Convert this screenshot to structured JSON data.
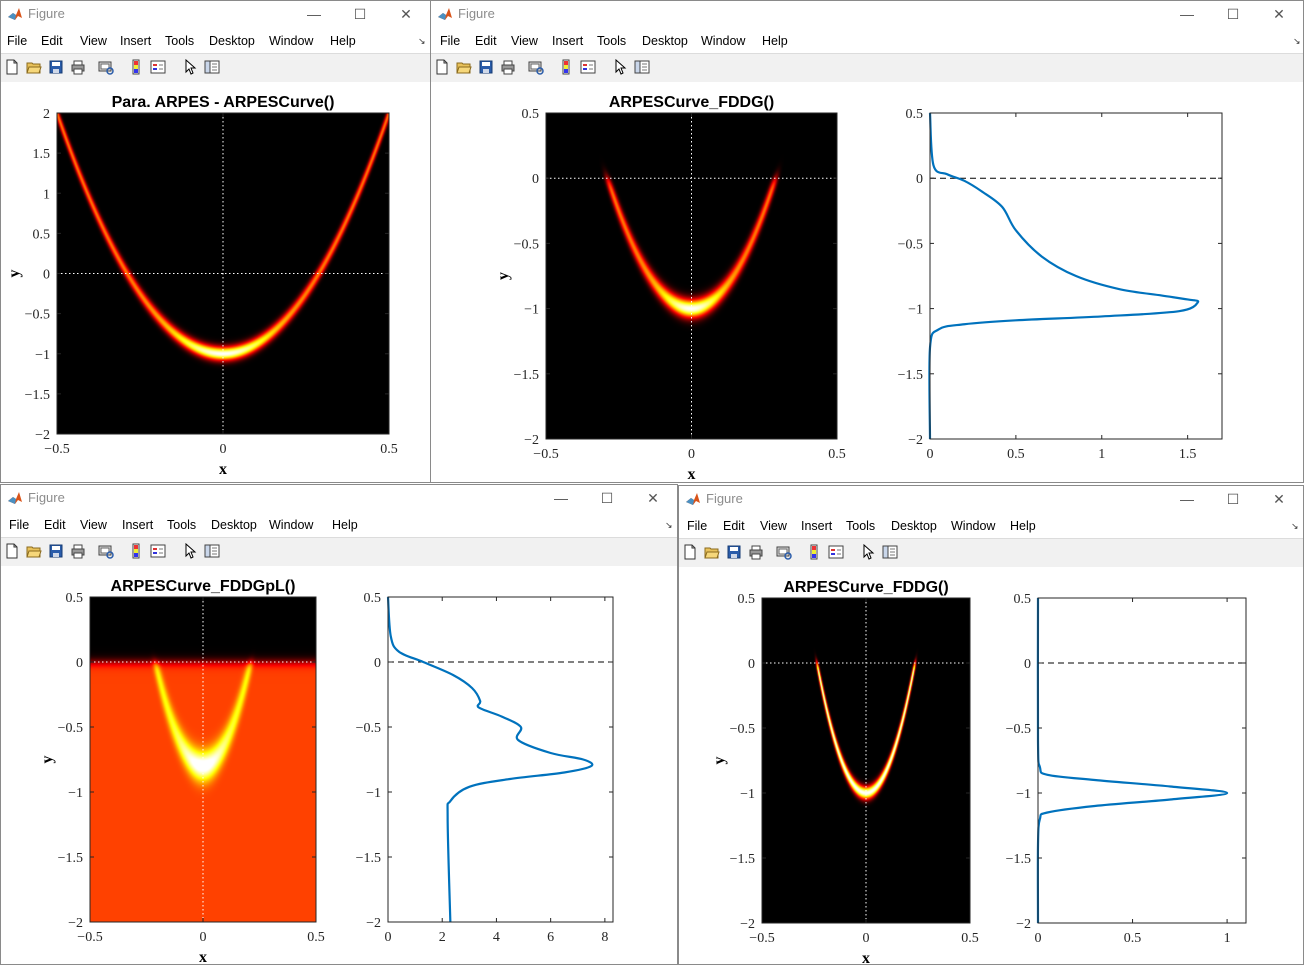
{
  "colors": {
    "curve": "#0072bd",
    "window_border": "#8a8a8a",
    "toolbar_bg": "#f1f1f1"
  },
  "icons": {
    "toolbar": [
      "new-figure-icon",
      "open-file-icon",
      "save-icon",
      "print-icon",
      "print-preview-icon",
      "insert-colorbar-icon",
      "insert-legend-icon",
      "select-arrow-icon",
      "property-editor-icon"
    ],
    "window_controls": [
      "minimize-icon",
      "maximize-icon",
      "close-icon"
    ],
    "app": "matlab-logo-icon"
  },
  "windows": [
    {
      "title": "Figure",
      "menu": [
        "File",
        "Edit",
        "View",
        "Insert",
        "Tools",
        "Desktop",
        "Window",
        "Help"
      ],
      "axes": [
        {
          "title": "Para. ARPES - ARPESCurve()",
          "xlabel": "x",
          "ylabel": "y",
          "xticks": [
            "-0.5",
            "0",
            "0.5"
          ],
          "yticks": [
            "2",
            "1.5",
            "1",
            "0.5",
            "0",
            "-0.5",
            "-1",
            "-1.5",
            "-2"
          ]
        }
      ]
    },
    {
      "title": "Figure",
      "menu": [
        "File",
        "Edit",
        "View",
        "Insert",
        "Tools",
        "Desktop",
        "Window",
        "Help"
      ],
      "axes": [
        {
          "title": "ARPESCurve_FDDG()",
          "xlabel": "x",
          "ylabel": "y",
          "xticks": [
            "-0.5",
            "0",
            "0.5"
          ],
          "yticks": [
            "0.5",
            "0",
            "-0.5",
            "-1",
            "-1.5",
            "-2"
          ]
        },
        {
          "title": "",
          "xlabel": "",
          "ylabel": "",
          "xticks": [
            "0",
            "0.5",
            "1",
            "1.5"
          ],
          "yticks": [
            "0.5",
            "0",
            "-0.5",
            "-1",
            "-1.5",
            "-2"
          ]
        }
      ]
    },
    {
      "title": "Figure",
      "menu": [
        "File",
        "Edit",
        "View",
        "Insert",
        "Tools",
        "Desktop",
        "Window",
        "Help"
      ],
      "axes": [
        {
          "title": "ARPESCurve_FDDGpL()",
          "xlabel": "x",
          "ylabel": "y",
          "xticks": [
            "-0.5",
            "0",
            "0.5"
          ],
          "yticks": [
            "0.5",
            "0",
            "-0.5",
            "-1",
            "-1.5",
            "-2"
          ]
        },
        {
          "title": "",
          "xlabel": "",
          "ylabel": "",
          "xticks": [
            "0",
            "2",
            "4",
            "6",
            "8"
          ],
          "yticks": [
            "0.5",
            "0",
            "-0.5",
            "-1",
            "-1.5",
            "-2"
          ]
        }
      ]
    },
    {
      "title": "Figure",
      "menu": [
        "File",
        "Edit",
        "View",
        "Insert",
        "Tools",
        "Desktop",
        "Window",
        "Help"
      ],
      "axes": [
        {
          "title": "ARPESCurve_FDDG()",
          "xlabel": "x",
          "ylabel": "y",
          "xticks": [
            "-0.5",
            "0",
            "0.5"
          ],
          "yticks": [
            "0.5",
            "0",
            "-0.5",
            "-1",
            "-1.5",
            "-2"
          ]
        },
        {
          "title": "",
          "xlabel": "",
          "ylabel": "",
          "xticks": [
            "0",
            "0.5",
            "1"
          ],
          "yticks": [
            "0.5",
            "0",
            "-0.5",
            "-1",
            "-1.5",
            "-2"
          ]
        }
      ]
    }
  ],
  "chart_data": [
    {
      "type": "heatmap",
      "title": "Para. ARPES - ARPESCurve()",
      "xlabel": "x",
      "ylabel": "y",
      "xlim": [
        -0.5,
        0.5
      ],
      "ylim": [
        -2,
        2
      ],
      "colormap": "hot",
      "band": "y = -1 + 12x^2",
      "reference_lines": {
        "x": 0,
        "y": 0,
        "style": "dotted white"
      }
    },
    {
      "type": "heatmap",
      "title": "ARPESCurve_FDDG()",
      "xlabel": "x",
      "ylabel": "y",
      "xlim": [
        -0.5,
        0.5
      ],
      "ylim": [
        -2,
        0.5
      ],
      "colormap": "hot",
      "band": "y = -1 + 12x^2, cut at y = 0",
      "reference_lines": {
        "x": 0,
        "y": 0,
        "style": "dotted white"
      }
    },
    {
      "type": "line",
      "title": "",
      "xlim": [
        0,
        1.7
      ],
      "ylim": [
        -2,
        0.5
      ],
      "series": [
        {
          "x": [
            0.0,
            0.02,
            0.1,
            0.2,
            0.3,
            0.42,
            0.5,
            0.65,
            0.85,
            1.1,
            1.35,
            1.5,
            1.56,
            1.45,
            1.0,
            0.5,
            0.2,
            0.05,
            0.0,
            0.0
          ],
          "y": [
            0.5,
            0.1,
            0.03,
            -0.02,
            -0.1,
            -0.22,
            -0.4,
            -0.6,
            -0.75,
            -0.85,
            -0.9,
            -0.93,
            -0.95,
            -1.02,
            -1.06,
            -1.09,
            -1.12,
            -1.16,
            -1.3,
            -2.0
          ]
        }
      ],
      "reference_lines": {
        "y": 0,
        "style": "dashed black"
      }
    },
    {
      "type": "heatmap",
      "title": "ARPESCurve_FDDGpL()",
      "xlabel": "x",
      "ylabel": "y",
      "xlim": [
        -0.5,
        0.5
      ],
      "ylim": [
        -2,
        0.5
      ],
      "colormap": "hot",
      "band": "y = -0.85 + 20x^2, cut at y = 0, background",
      "reference_lines": {
        "x": 0,
        "y": 0,
        "style": "dotted white"
      }
    },
    {
      "type": "line",
      "title": "",
      "xlim": [
        0,
        8.3
      ],
      "ylim": [
        -2,
        0.5
      ],
      "series": [
        {
          "x": [
            0.0,
            0.1,
            0.4,
            1.3,
            2.4,
            3.1,
            3.4,
            3.35,
            4.2,
            4.9,
            4.8,
            6.0,
            7.2,
            7.5,
            6.5,
            4.5,
            3.0,
            2.3,
            2.2,
            2.3
          ],
          "y": [
            0.5,
            0.2,
            0.08,
            0.0,
            -0.1,
            -0.2,
            -0.3,
            -0.35,
            -0.42,
            -0.5,
            -0.6,
            -0.7,
            -0.75,
            -0.8,
            -0.85,
            -0.9,
            -0.96,
            -1.07,
            -1.2,
            -2.0
          ]
        }
      ],
      "reference_lines": {
        "y": 0,
        "style": "dashed black"
      }
    },
    {
      "type": "heatmap",
      "title": "ARPESCurve_FDDG()",
      "xlabel": "x",
      "ylabel": "y",
      "xlim": [
        -0.5,
        0.5
      ],
      "ylim": [
        -2,
        0.5
      ],
      "colormap": "hot",
      "band": "y = -1 + 18x^2, cut at y = 0",
      "reference_lines": {
        "x": 0,
        "y": 0,
        "style": "dotted white"
      }
    },
    {
      "type": "line",
      "title": "",
      "xlim": [
        0,
        1.1
      ],
      "ylim": [
        -2,
        0.5
      ],
      "series": [
        {
          "x": [
            0.0,
            0.0,
            0.01,
            0.05,
            0.3,
            0.7,
            1.0,
            0.7,
            0.3,
            0.05,
            0.01,
            0.0,
            0.0
          ],
          "y": [
            0.5,
            -0.6,
            -0.8,
            -0.86,
            -0.9,
            -0.95,
            -1.0,
            -1.05,
            -1.1,
            -1.15,
            -1.2,
            -1.4,
            -2.0
          ]
        }
      ],
      "reference_lines": {
        "y": 0,
        "style": "dashed black"
      }
    }
  ]
}
